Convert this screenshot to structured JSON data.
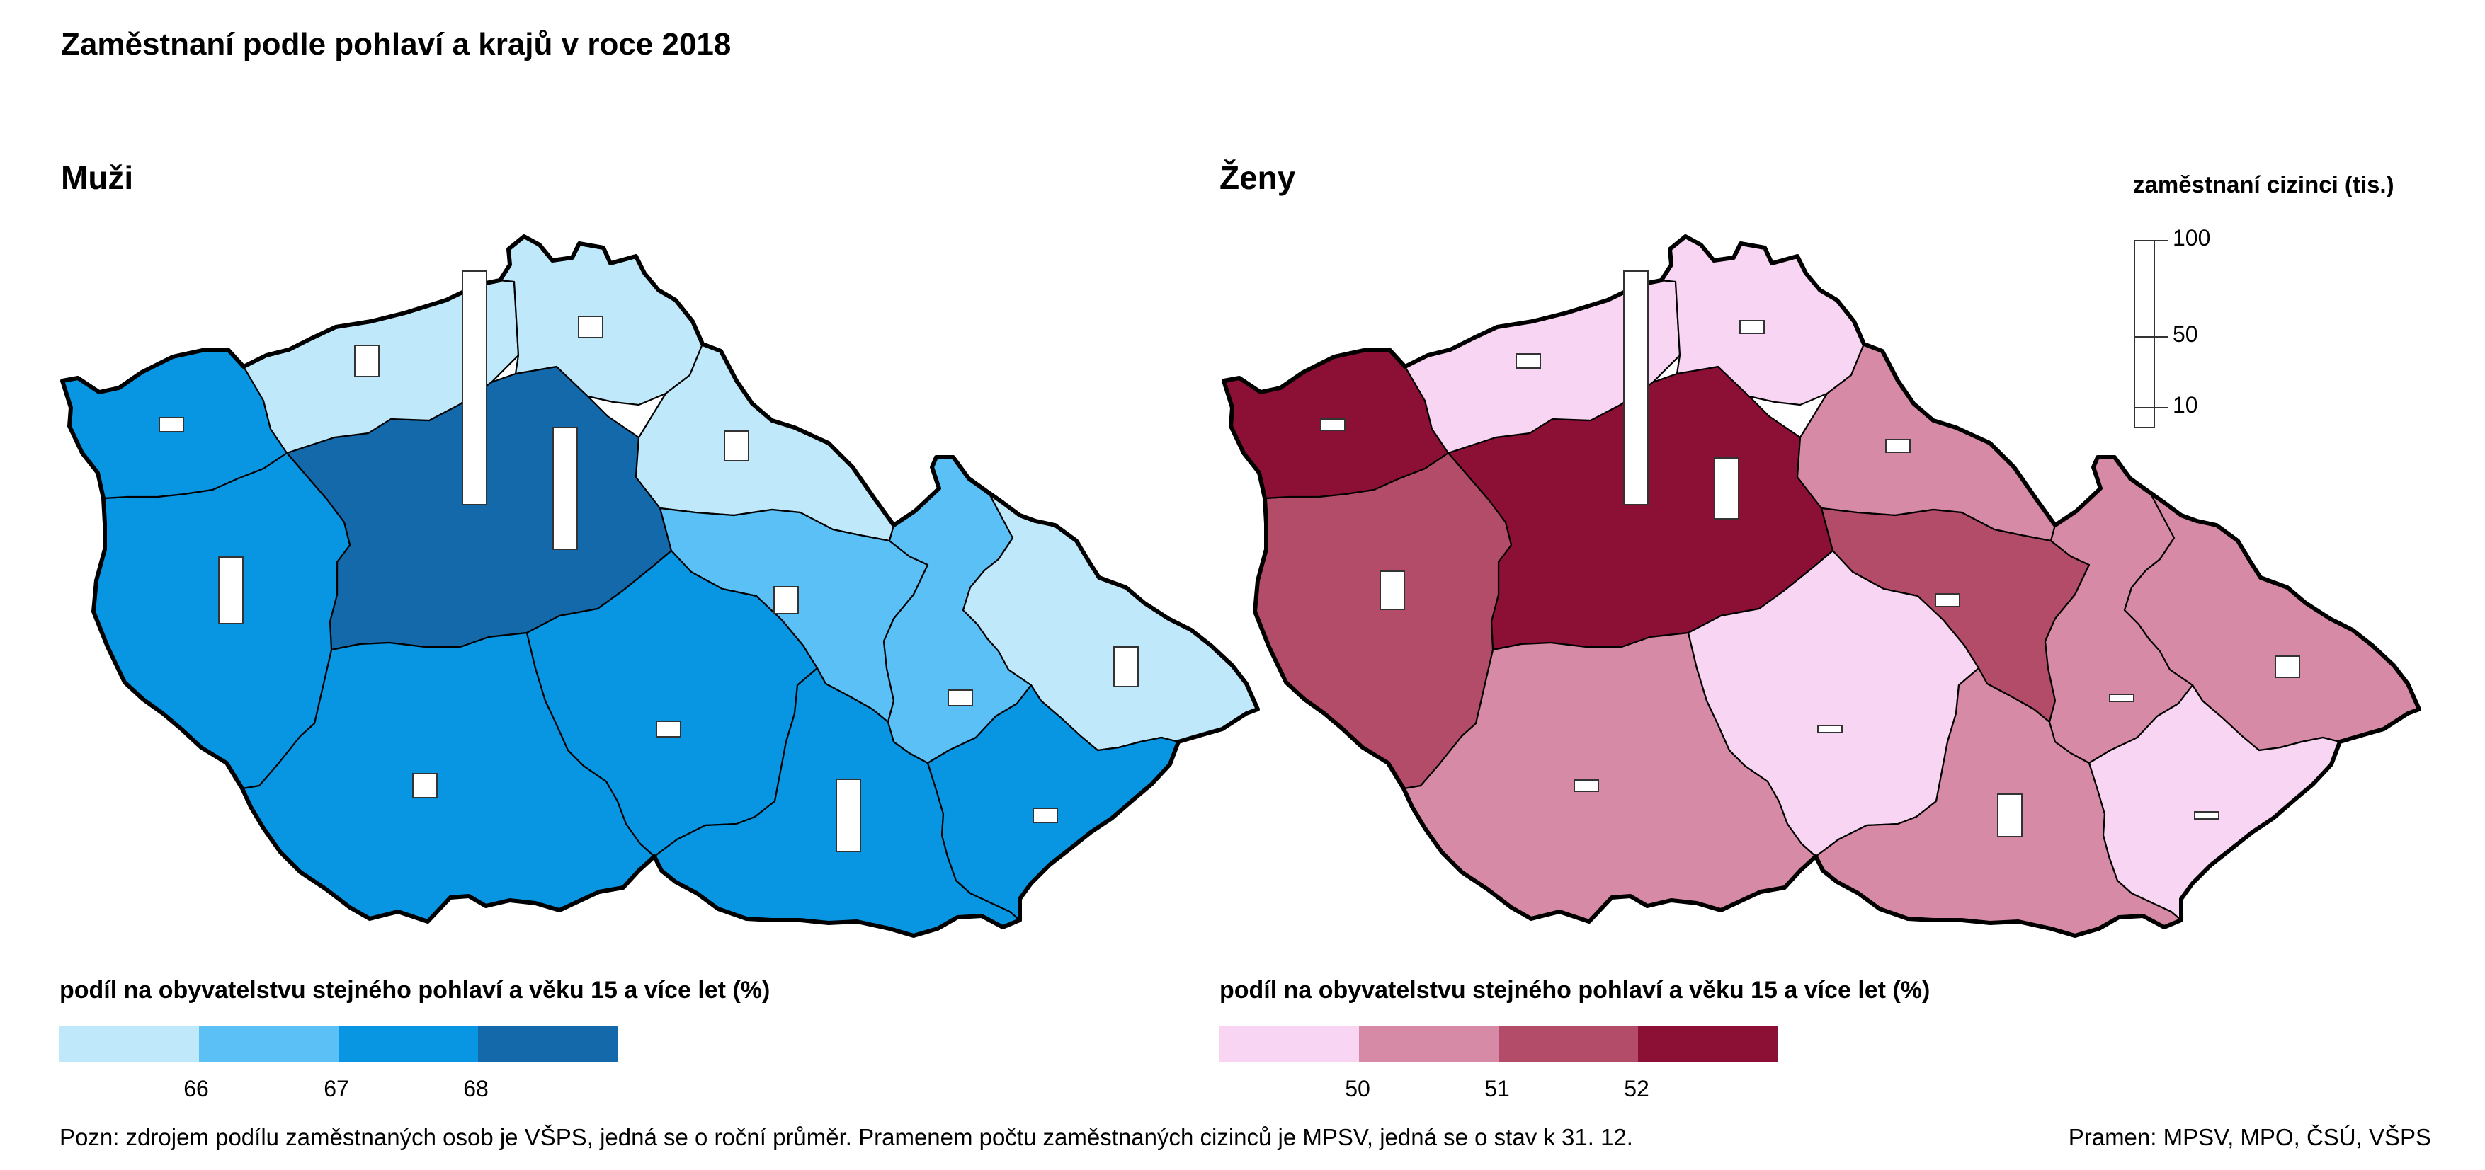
{
  "title": "Zaměstnaní podle pohlaví a krajů v roce 2018",
  "men": {
    "title": "Muži",
    "legend_title": "podíl na obyvatelstvu stejného pohlaví a věku 15 a více let (%)",
    "ticks": [
      "66",
      "67",
      "68"
    ],
    "colors": [
      "#bfe9fb",
      "#5bc0f6",
      "#0895e1",
      "#1469aa"
    ]
  },
  "women": {
    "title": "Ženy",
    "legend_title": "podíl na obyvatelstvu stejného pohlaví a věku 15 a více let (%)",
    "ticks": [
      "50",
      "51",
      "52"
    ],
    "colors": [
      "#f8d5f2",
      "#d68aa6",
      "#b24c69",
      "#8c1036"
    ]
  },
  "size_legend": {
    "title": "zaměstnaní cizinci (tis.)",
    "labels": [
      "100",
      "50",
      "10"
    ]
  },
  "note": "Pozn: zdrojem podílu zaměstnaných osob je VŠPS, jedná se o roční průměr. Pramenem počtu zaměstnaných cizinců je MPSV, jedná se o stav k 31. 12.",
  "source": "Pramen: MPSV, MPO, ČSÚ, VŠPS",
  "regions": [
    {
      "name": "Praha",
      "men_class": 3,
      "women_class": 3
    },
    {
      "name": "Středočeský",
      "men_class": 3,
      "women_class": 3
    },
    {
      "name": "Jihočeský",
      "men_class": 2,
      "women_class": 1
    },
    {
      "name": "Plzeňský",
      "men_class": 2,
      "women_class": 2
    },
    {
      "name": "Karlovarský",
      "men_class": 2,
      "women_class": 3
    },
    {
      "name": "Ústecký",
      "men_class": 0,
      "women_class": 0
    },
    {
      "name": "Liberecký",
      "men_class": 0,
      "women_class": 0
    },
    {
      "name": "Královéhradecký",
      "men_class": 0,
      "women_class": 1
    },
    {
      "name": "Pardubický",
      "men_class": 1,
      "women_class": 2
    },
    {
      "name": "Vysočina",
      "men_class": 2,
      "women_class": 0
    },
    {
      "name": "Jihomoravský",
      "men_class": 2,
      "women_class": 1
    },
    {
      "name": "Olomoucký",
      "men_class": 1,
      "women_class": 1
    },
    {
      "name": "Moravskoslezský",
      "men_class": 0,
      "women_class": 1
    },
    {
      "name": "Zlínský",
      "men_class": 2,
      "women_class": 0
    }
  ]
}
